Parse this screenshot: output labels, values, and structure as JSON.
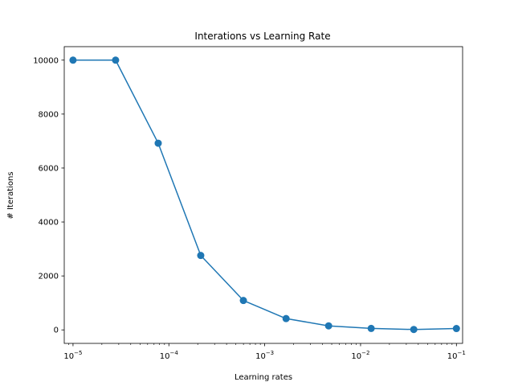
{
  "chart_data": {
    "type": "line",
    "title": "Interations vs Learning Rate",
    "xlabel": "Learning rates",
    "ylabel": "# Iterations",
    "xscale": "log",
    "xlim": [
      8.1e-06,
      0.116
    ],
    "ylim": [
      -500,
      10500
    ],
    "grid": false,
    "x_ticks": [
      {
        "value": 1e-05,
        "base": "10",
        "exp": "−5"
      },
      {
        "value": 0.0001,
        "base": "10",
        "exp": "−4"
      },
      {
        "value": 0.001,
        "base": "10",
        "exp": "−3"
      },
      {
        "value": 0.01,
        "base": "10",
        "exp": "−2"
      },
      {
        "value": 0.1,
        "base": "10",
        "exp": "−1"
      }
    ],
    "y_ticks": [
      {
        "value": 0,
        "label": "0"
      },
      {
        "value": 2000,
        "label": "2000"
      },
      {
        "value": 4000,
        "label": "4000"
      },
      {
        "value": 6000,
        "label": "6000"
      },
      {
        "value": 8000,
        "label": "8000"
      },
      {
        "value": 10000,
        "label": "10000"
      }
    ],
    "series": [
      {
        "color": "#1f77b4",
        "x": [
          1e-05,
          2.78e-05,
          7.74e-05,
          0.000215,
          0.000599,
          0.00167,
          0.00464,
          0.0129,
          0.0359,
          0.1
        ],
        "y": [
          10000,
          10000,
          6920,
          2760,
          1090,
          420,
          150,
          55,
          15,
          50
        ]
      }
    ]
  }
}
